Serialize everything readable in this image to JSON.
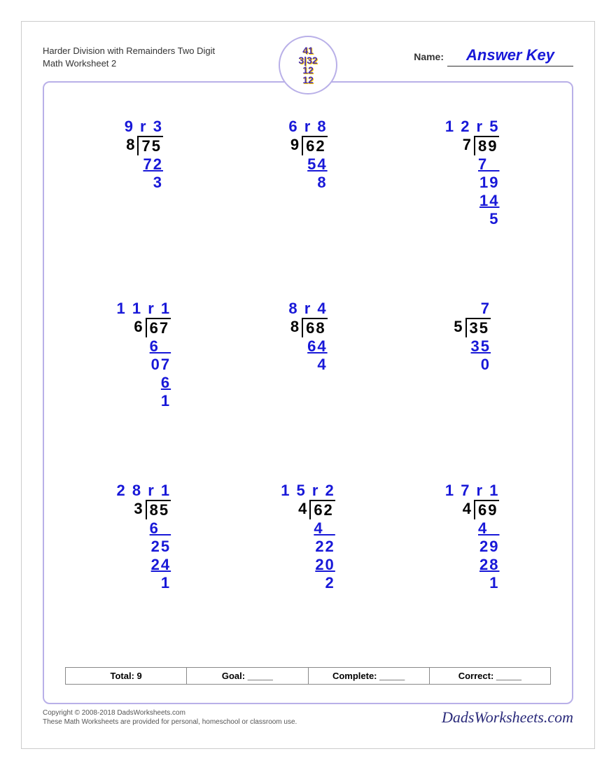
{
  "header": {
    "title": "Harder Division with Remainders Two Digit Math Worksheet 2",
    "name_label": "Name:",
    "answer_key": "Answer Key",
    "logo_text": "41\n3132\n12\n12"
  },
  "colors": {
    "answer": "#1818d8",
    "border": "#b9b0e8",
    "text": "#000000"
  },
  "problems": [
    {
      "divisor": "8",
      "dividend": "75",
      "quotient": "9 r 3",
      "work": [
        {
          "t": "72",
          "u": true
        },
        {
          "t": "3",
          "u": false
        }
      ]
    },
    {
      "divisor": "9",
      "dividend": "62",
      "quotient": "6 r 8",
      "work": [
        {
          "t": "54",
          "u": true
        },
        {
          "t": "8",
          "u": false
        }
      ]
    },
    {
      "divisor": "7",
      "dividend": "89",
      "quotient": "1 2 r 5",
      "work": [
        {
          "t": "7  ",
          "u": true
        },
        {
          "t": "19",
          "u": false
        },
        {
          "t": "14",
          "u": true
        },
        {
          "t": "5",
          "u": false
        }
      ]
    },
    {
      "divisor": "6",
      "dividend": "67",
      "quotient": "1 1 r 1",
      "work": [
        {
          "t": "6  ",
          "u": true
        },
        {
          "t": "07",
          "u": false
        },
        {
          "t": "6",
          "u": true
        },
        {
          "t": "1",
          "u": false
        }
      ]
    },
    {
      "divisor": "8",
      "dividend": "68",
      "quotient": "8 r 4",
      "work": [
        {
          "t": "64",
          "u": true
        },
        {
          "t": "4",
          "u": false
        }
      ]
    },
    {
      "divisor": "5",
      "dividend": "35",
      "quotient": "7",
      "work": [
        {
          "t": "35",
          "u": true
        },
        {
          "t": "0",
          "u": false
        }
      ]
    },
    {
      "divisor": "3",
      "dividend": "85",
      "quotient": "2 8 r 1",
      "work": [
        {
          "t": "6  ",
          "u": true
        },
        {
          "t": "25",
          "u": false
        },
        {
          "t": "24",
          "u": true
        },
        {
          "t": "1",
          "u": false
        }
      ]
    },
    {
      "divisor": "4",
      "dividend": "62",
      "quotient": "1 5 r 2",
      "work": [
        {
          "t": "4  ",
          "u": true
        },
        {
          "t": "22",
          "u": false
        },
        {
          "t": "20",
          "u": true
        },
        {
          "t": "2",
          "u": false
        }
      ]
    },
    {
      "divisor": "4",
      "dividend": "69",
      "quotient": "1 7 r 1",
      "work": [
        {
          "t": "4  ",
          "u": true
        },
        {
          "t": "29",
          "u": false
        },
        {
          "t": "28",
          "u": true
        },
        {
          "t": "1",
          "u": false
        }
      ]
    }
  ],
  "summary": {
    "total": "Total: 9",
    "goal": "Goal: _____",
    "complete": "Complete: _____",
    "correct": "Correct: _____"
  },
  "footer": {
    "copyright": "Copyright © 2008-2018 DadsWorksheets.com",
    "note": "These Math Worksheets are provided for personal, homeschool or classroom use.",
    "brand": "DadsWorksheets.com"
  }
}
